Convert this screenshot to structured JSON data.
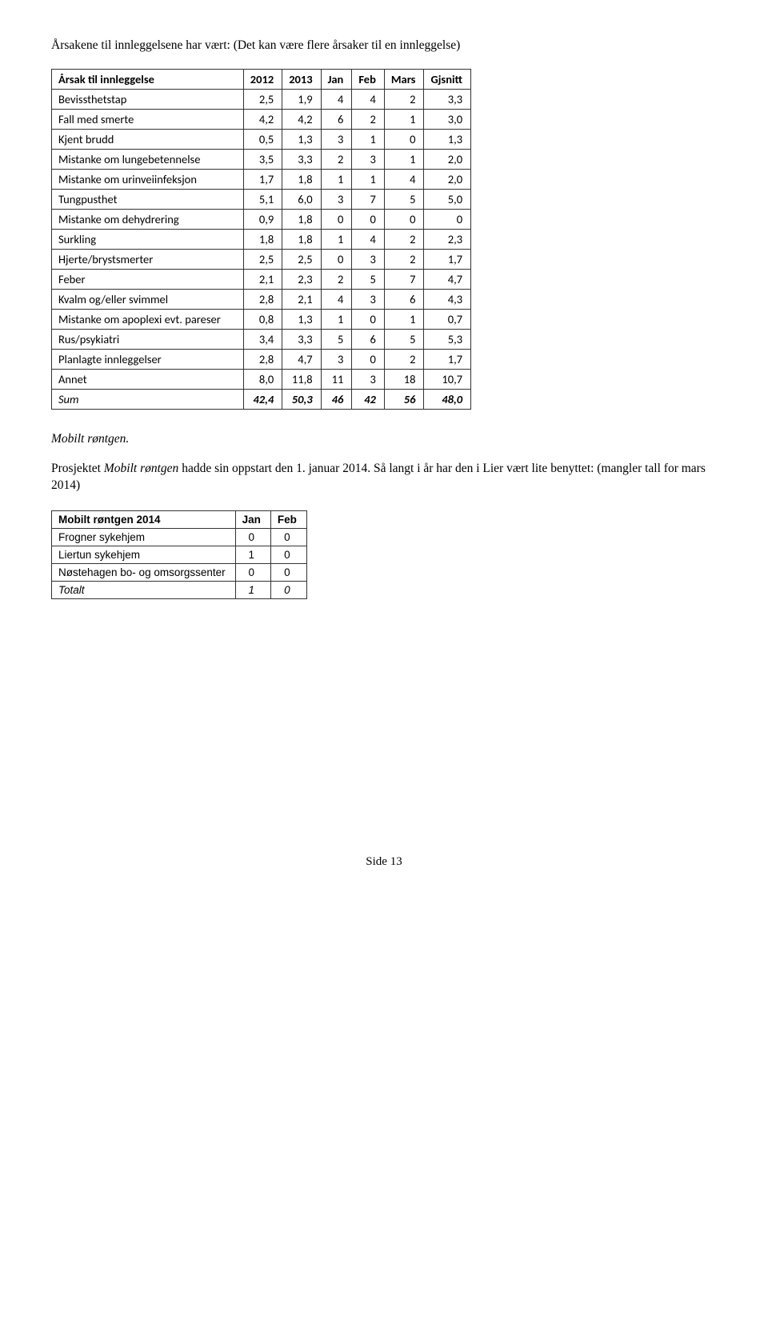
{
  "intro": "Årsakene til innleggelsene har vært: (Det kan være flere årsaker til en innleggelse)",
  "table1": {
    "headers": [
      "Årsak til innleggelse",
      "2012",
      "2013",
      "Jan",
      "Feb",
      "Mars",
      "Gjsnitt"
    ],
    "rows": [
      [
        "Bevissthetstap",
        "2,5",
        "1,9",
        "4",
        "4",
        "2",
        "3,3"
      ],
      [
        "Fall med smerte",
        "4,2",
        "4,2",
        "6",
        "2",
        "1",
        "3,0"
      ],
      [
        "Kjent brudd",
        "0,5",
        "1,3",
        "3",
        "1",
        "0",
        "1,3"
      ],
      [
        "Mistanke om lungebetennelse",
        "3,5",
        "3,3",
        "2",
        "3",
        "1",
        "2,0"
      ],
      [
        "Mistanke om urinveiinfeksjon",
        "1,7",
        "1,8",
        "1",
        "1",
        "4",
        "2,0"
      ],
      [
        "Tungpusthet",
        "5,1",
        "6,0",
        "3",
        "7",
        "5",
        "5,0"
      ],
      [
        "Mistanke om dehydrering",
        "0,9",
        "1,8",
        "0",
        "0",
        "0",
        "0"
      ],
      [
        "Surkling",
        "1,8",
        "1,8",
        "1",
        "4",
        "2",
        "2,3"
      ],
      [
        "Hjerte/brystsmerter",
        "2,5",
        "2,5",
        "0",
        "3",
        "2",
        "1,7"
      ],
      [
        "Feber",
        "2,1",
        "2,3",
        "2",
        "5",
        "7",
        "4,7"
      ],
      [
        "Kvalm og/eller svimmel",
        "2,8",
        "2,1",
        "4",
        "3",
        "6",
        "4,3"
      ],
      [
        "Mistanke om apoplexi evt. pareser",
        "0,8",
        "1,3",
        "1",
        "0",
        "1",
        "0,7"
      ],
      [
        "Rus/psykiatri",
        "3,4",
        "3,3",
        "5",
        "6",
        "5",
        "5,3"
      ],
      [
        "Planlagte innleggelser",
        "2,8",
        "4,7",
        "3",
        "0",
        "2",
        "1,7"
      ],
      [
        "Annet",
        "8,0",
        "11,8",
        "11",
        "3",
        "18",
        "10,7"
      ]
    ],
    "sum": [
      "Sum",
      "42,4",
      "50,3",
      "46",
      "42",
      "56",
      "48,0"
    ]
  },
  "section_title": "Mobilt røntgen.",
  "para_prefix": "Prosjektet ",
  "para_ital": "Mobilt røntgen",
  "para_rest": " hadde sin oppstart den 1. januar 2014.  Så langt i år har den i Lier vært lite benyttet: (mangler tall for mars 2014)",
  "table2": {
    "headers": [
      "Mobilt røntgen 2014",
      "Jan",
      "Feb"
    ],
    "rows": [
      [
        "Frogner sykehjem",
        "0",
        "0"
      ],
      [
        "Liertun sykehjem",
        "1",
        "0"
      ],
      [
        "Nøstehagen bo- og omsorgssenter",
        "0",
        "0"
      ]
    ],
    "total": [
      "Totalt",
      "1",
      "0"
    ]
  },
  "footer": "Side 13"
}
